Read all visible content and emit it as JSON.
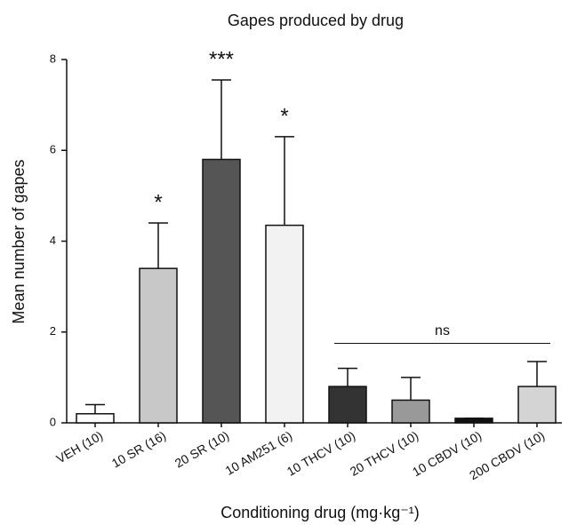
{
  "chart_data": {
    "type": "bar",
    "title": "Gapes produced by drug",
    "x_label": "Conditioning drug (mg·kg⁻¹)",
    "y_label": "Mean number of gapes",
    "categories": [
      "VEH (10)",
      "10 SR (16)",
      "20 SR (10)",
      "10 AM251 (6)",
      "10 THCV (10)",
      "20 THCV (10)",
      "10 CBDV (10)",
      "200 CBDV (10)"
    ],
    "values": [
      0.2,
      3.4,
      5.8,
      4.35,
      0.8,
      0.5,
      0.1,
      0.8
    ],
    "errors": [
      0.2,
      1.0,
      1.75,
      1.95,
      0.4,
      0.5,
      0,
      0.55
    ],
    "colors": [
      "#ffffff",
      "#c8c8c8",
      "#555555",
      "#f2f2f2",
      "#333333",
      "#999999",
      "#111111",
      "#d4d4d4"
    ],
    "significance": [
      "",
      "*",
      "***",
      "*",
      null,
      null,
      null,
      null
    ],
    "group_annotation": "ns",
    "ylim": [
      0,
      8
    ],
    "yticks": [
      0,
      2,
      4,
      6,
      8
    ]
  }
}
